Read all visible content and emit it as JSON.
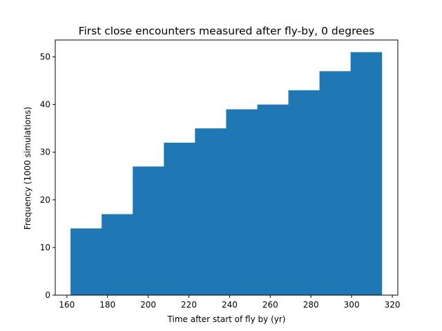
{
  "chart_data": {
    "type": "bar",
    "title": "First close encounters measured after fly-by, 0 degrees",
    "xlabel": "Time after start of fly by (yr)",
    "ylabel": "Frequency (1000 simulations)",
    "xlim": [
      154.3,
      322.7
    ],
    "ylim": [
      0,
      53.55
    ],
    "xticks": [
      160,
      180,
      200,
      220,
      240,
      260,
      280,
      300,
      320
    ],
    "yticks": [
      0,
      10,
      20,
      30,
      40,
      50
    ],
    "bin_edges": [
      161.8,
      177.1,
      192.4,
      207.7,
      223.0,
      238.3,
      253.6,
      268.9,
      284.2,
      299.5,
      314.8
    ],
    "values": [
      14,
      17,
      27,
      32,
      35,
      39,
      40,
      43,
      47,
      51
    ],
    "bar_color": "#1f77b4",
    "grid": false
  }
}
